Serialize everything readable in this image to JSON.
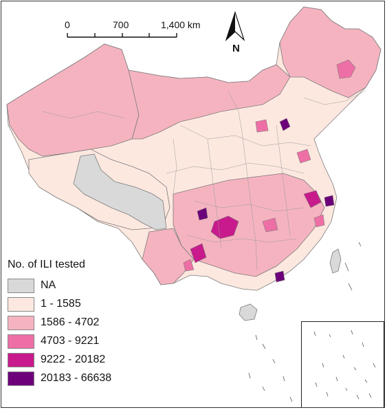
{
  "scale_bar": {
    "labels": [
      "0",
      "700",
      "1,400 km"
    ]
  },
  "north_arrow": {
    "label": "N",
    "icon": "north-arrow-icon"
  },
  "legend": {
    "title": "No. of ILI tested",
    "items": [
      {
        "label": "NA",
        "color": "#d9d9d9"
      },
      {
        "label": "1 - 1585",
        "color": "#fde8e0"
      },
      {
        "label": "1586 - 4702",
        "color": "#f5b3c0"
      },
      {
        "label": "4703 - 9221",
        "color": "#ee6fa5"
      },
      {
        "label": "9222 - 20182",
        "color": "#c81a8c"
      },
      {
        "label": "20183 - 66638",
        "color": "#6d007a"
      }
    ]
  },
  "colors": {
    "border": "#7a7a7a",
    "frame": "#333333"
  }
}
